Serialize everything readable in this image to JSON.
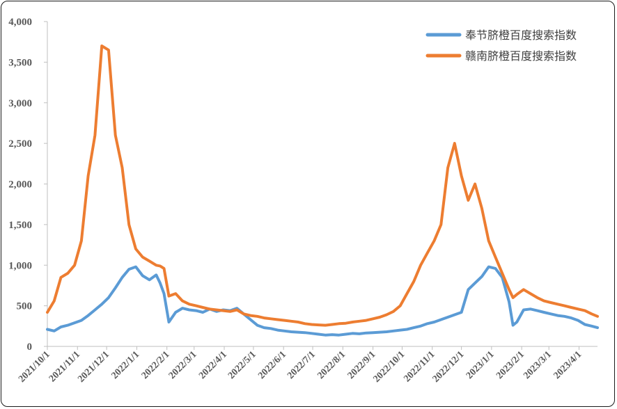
{
  "chart_data": {
    "type": "line",
    "title": "",
    "xlabel": "",
    "ylabel": "",
    "ylim": [
      0,
      4000
    ],
    "yticks": [
      0,
      500,
      1000,
      1500,
      2000,
      2500,
      3000,
      3500,
      4000
    ],
    "ytick_labels": [
      "0",
      "500",
      "1,000",
      "1,500",
      "2,000",
      "2,500",
      "3,000",
      "3,500",
      "4,000"
    ],
    "x_start": "2021/10/1",
    "x_end": "2023/4/20",
    "xtick_labels": [
      "2021/10/1",
      "2021/11/1",
      "2021/12/1",
      "2022/1/1",
      "2022/2/1",
      "2022/3/1",
      "2022/4/1",
      "2022/5/1",
      "2022/6/1",
      "2022/7/1",
      "2022/8/1",
      "2022/9/1",
      "2022/10/1",
      "2022/11/1",
      "2022/12/1",
      "2023/1/1",
      "2023/2/1",
      "2023/3/1",
      "2023/4/1"
    ],
    "grid": false,
    "legend_position": "top-right",
    "series": [
      {
        "name": "奉节脐橙百度搜索指数",
        "color": "#5B9BD5",
        "x": [
          "2021/10/1",
          "2021/10/8",
          "2021/10/15",
          "2021/10/22",
          "2021/10/29",
          "2021/11/5",
          "2021/11/12",
          "2021/11/19",
          "2021/11/26",
          "2021/12/3",
          "2021/12/10",
          "2021/12/17",
          "2021/12/24",
          "2021/12/31",
          "2022/1/7",
          "2022/1/14",
          "2022/1/21",
          "2022/1/25",
          "2022/1/29",
          "2022/2/3",
          "2022/2/10",
          "2022/2/17",
          "2022/2/24",
          "2022/3/3",
          "2022/3/10",
          "2022/3/17",
          "2022/3/24",
          "2022/3/31",
          "2022/4/7",
          "2022/4/14",
          "2022/4/21",
          "2022/4/28",
          "2022/5/5",
          "2022/5/12",
          "2022/5/19",
          "2022/5/26",
          "2022/6/2",
          "2022/6/9",
          "2022/6/16",
          "2022/6/23",
          "2022/6/30",
          "2022/7/7",
          "2022/7/14",
          "2022/7/21",
          "2022/7/28",
          "2022/8/4",
          "2022/8/11",
          "2022/8/18",
          "2022/8/25",
          "2022/9/1",
          "2022/9/8",
          "2022/9/15",
          "2022/9/22",
          "2022/9/29",
          "2022/10/6",
          "2022/10/13",
          "2022/10/20",
          "2022/10/27",
          "2022/11/3",
          "2022/11/10",
          "2022/11/17",
          "2022/11/24",
          "2022/12/1",
          "2022/12/8",
          "2022/12/15",
          "2022/12/22",
          "2022/12/29",
          "2023/1/5",
          "2023/1/12",
          "2023/1/19",
          "2023/1/23",
          "2023/1/27",
          "2023/2/3",
          "2023/2/10",
          "2023/2/17",
          "2023/2/24",
          "2023/3/3",
          "2023/3/10",
          "2023/3/17",
          "2023/3/24",
          "2023/3/31",
          "2023/4/7",
          "2023/4/14",
          "2023/4/20"
        ],
        "values": [
          210,
          190,
          240,
          260,
          290,
          320,
          380,
          450,
          520,
          600,
          720,
          850,
          950,
          980,
          870,
          820,
          880,
          780,
          650,
          300,
          420,
          470,
          450,
          440,
          420,
          460,
          430,
          450,
          440,
          470,
          400,
          330,
          260,
          230,
          220,
          200,
          190,
          180,
          175,
          170,
          160,
          150,
          140,
          145,
          140,
          150,
          160,
          155,
          165,
          170,
          175,
          180,
          190,
          200,
          210,
          230,
          250,
          280,
          300,
          330,
          360,
          390,
          420,
          700,
          780,
          860,
          980,
          960,
          850,
          550,
          260,
          300,
          450,
          460,
          440,
          420,
          400,
          380,
          370,
          350,
          320,
          270,
          250,
          230
        ]
      },
      {
        "name": "赣南脐橙百度搜索指数",
        "color": "#ED7D31",
        "x": [
          "2021/10/1",
          "2021/10/8",
          "2021/10/15",
          "2021/10/22",
          "2021/10/29",
          "2021/11/5",
          "2021/11/12",
          "2021/11/19",
          "2021/11/26",
          "2021/12/3",
          "2021/12/10",
          "2021/12/17",
          "2021/12/24",
          "2021/12/31",
          "2022/1/7",
          "2022/1/14",
          "2022/1/21",
          "2022/1/25",
          "2022/1/29",
          "2022/2/3",
          "2022/2/10",
          "2022/2/17",
          "2022/2/24",
          "2022/3/3",
          "2022/3/10",
          "2022/3/17",
          "2022/3/24",
          "2022/3/31",
          "2022/4/7",
          "2022/4/14",
          "2022/4/21",
          "2022/4/28",
          "2022/5/5",
          "2022/5/12",
          "2022/5/19",
          "2022/5/26",
          "2022/6/2",
          "2022/6/9",
          "2022/6/16",
          "2022/6/23",
          "2022/6/30",
          "2022/7/7",
          "2022/7/14",
          "2022/7/21",
          "2022/7/28",
          "2022/8/4",
          "2022/8/11",
          "2022/8/18",
          "2022/8/25",
          "2022/9/1",
          "2022/9/8",
          "2022/9/15",
          "2022/9/22",
          "2022/9/29",
          "2022/10/6",
          "2022/10/13",
          "2022/10/20",
          "2022/10/27",
          "2022/11/3",
          "2022/11/10",
          "2022/11/17",
          "2022/11/24",
          "2022/12/1",
          "2022/12/8",
          "2022/12/15",
          "2022/12/22",
          "2022/12/29",
          "2023/1/5",
          "2023/1/12",
          "2023/1/19",
          "2023/1/23",
          "2023/1/27",
          "2023/2/3",
          "2023/2/10",
          "2023/2/17",
          "2023/2/24",
          "2023/3/3",
          "2023/3/10",
          "2023/3/17",
          "2023/3/24",
          "2023/3/31",
          "2023/4/7",
          "2023/4/14",
          "2023/4/20"
        ],
        "values": [
          420,
          560,
          850,
          900,
          1000,
          1300,
          2100,
          2600,
          3700,
          3650,
          2600,
          2200,
          1500,
          1200,
          1100,
          1050,
          1000,
          990,
          960,
          620,
          650,
          560,
          520,
          500,
          480,
          460,
          450,
          440,
          430,
          450,
          400,
          380,
          370,
          350,
          340,
          330,
          320,
          310,
          300,
          280,
          270,
          265,
          260,
          270,
          280,
          285,
          300,
          310,
          320,
          340,
          360,
          390,
          430,
          500,
          650,
          800,
          1000,
          1150,
          1300,
          1500,
          2200,
          2500,
          2100,
          1800,
          2000,
          1700,
          1300,
          1100,
          900,
          700,
          600,
          640,
          700,
          650,
          600,
          560,
          540,
          520,
          500,
          480,
          460,
          440,
          400,
          370
        ]
      }
    ]
  }
}
